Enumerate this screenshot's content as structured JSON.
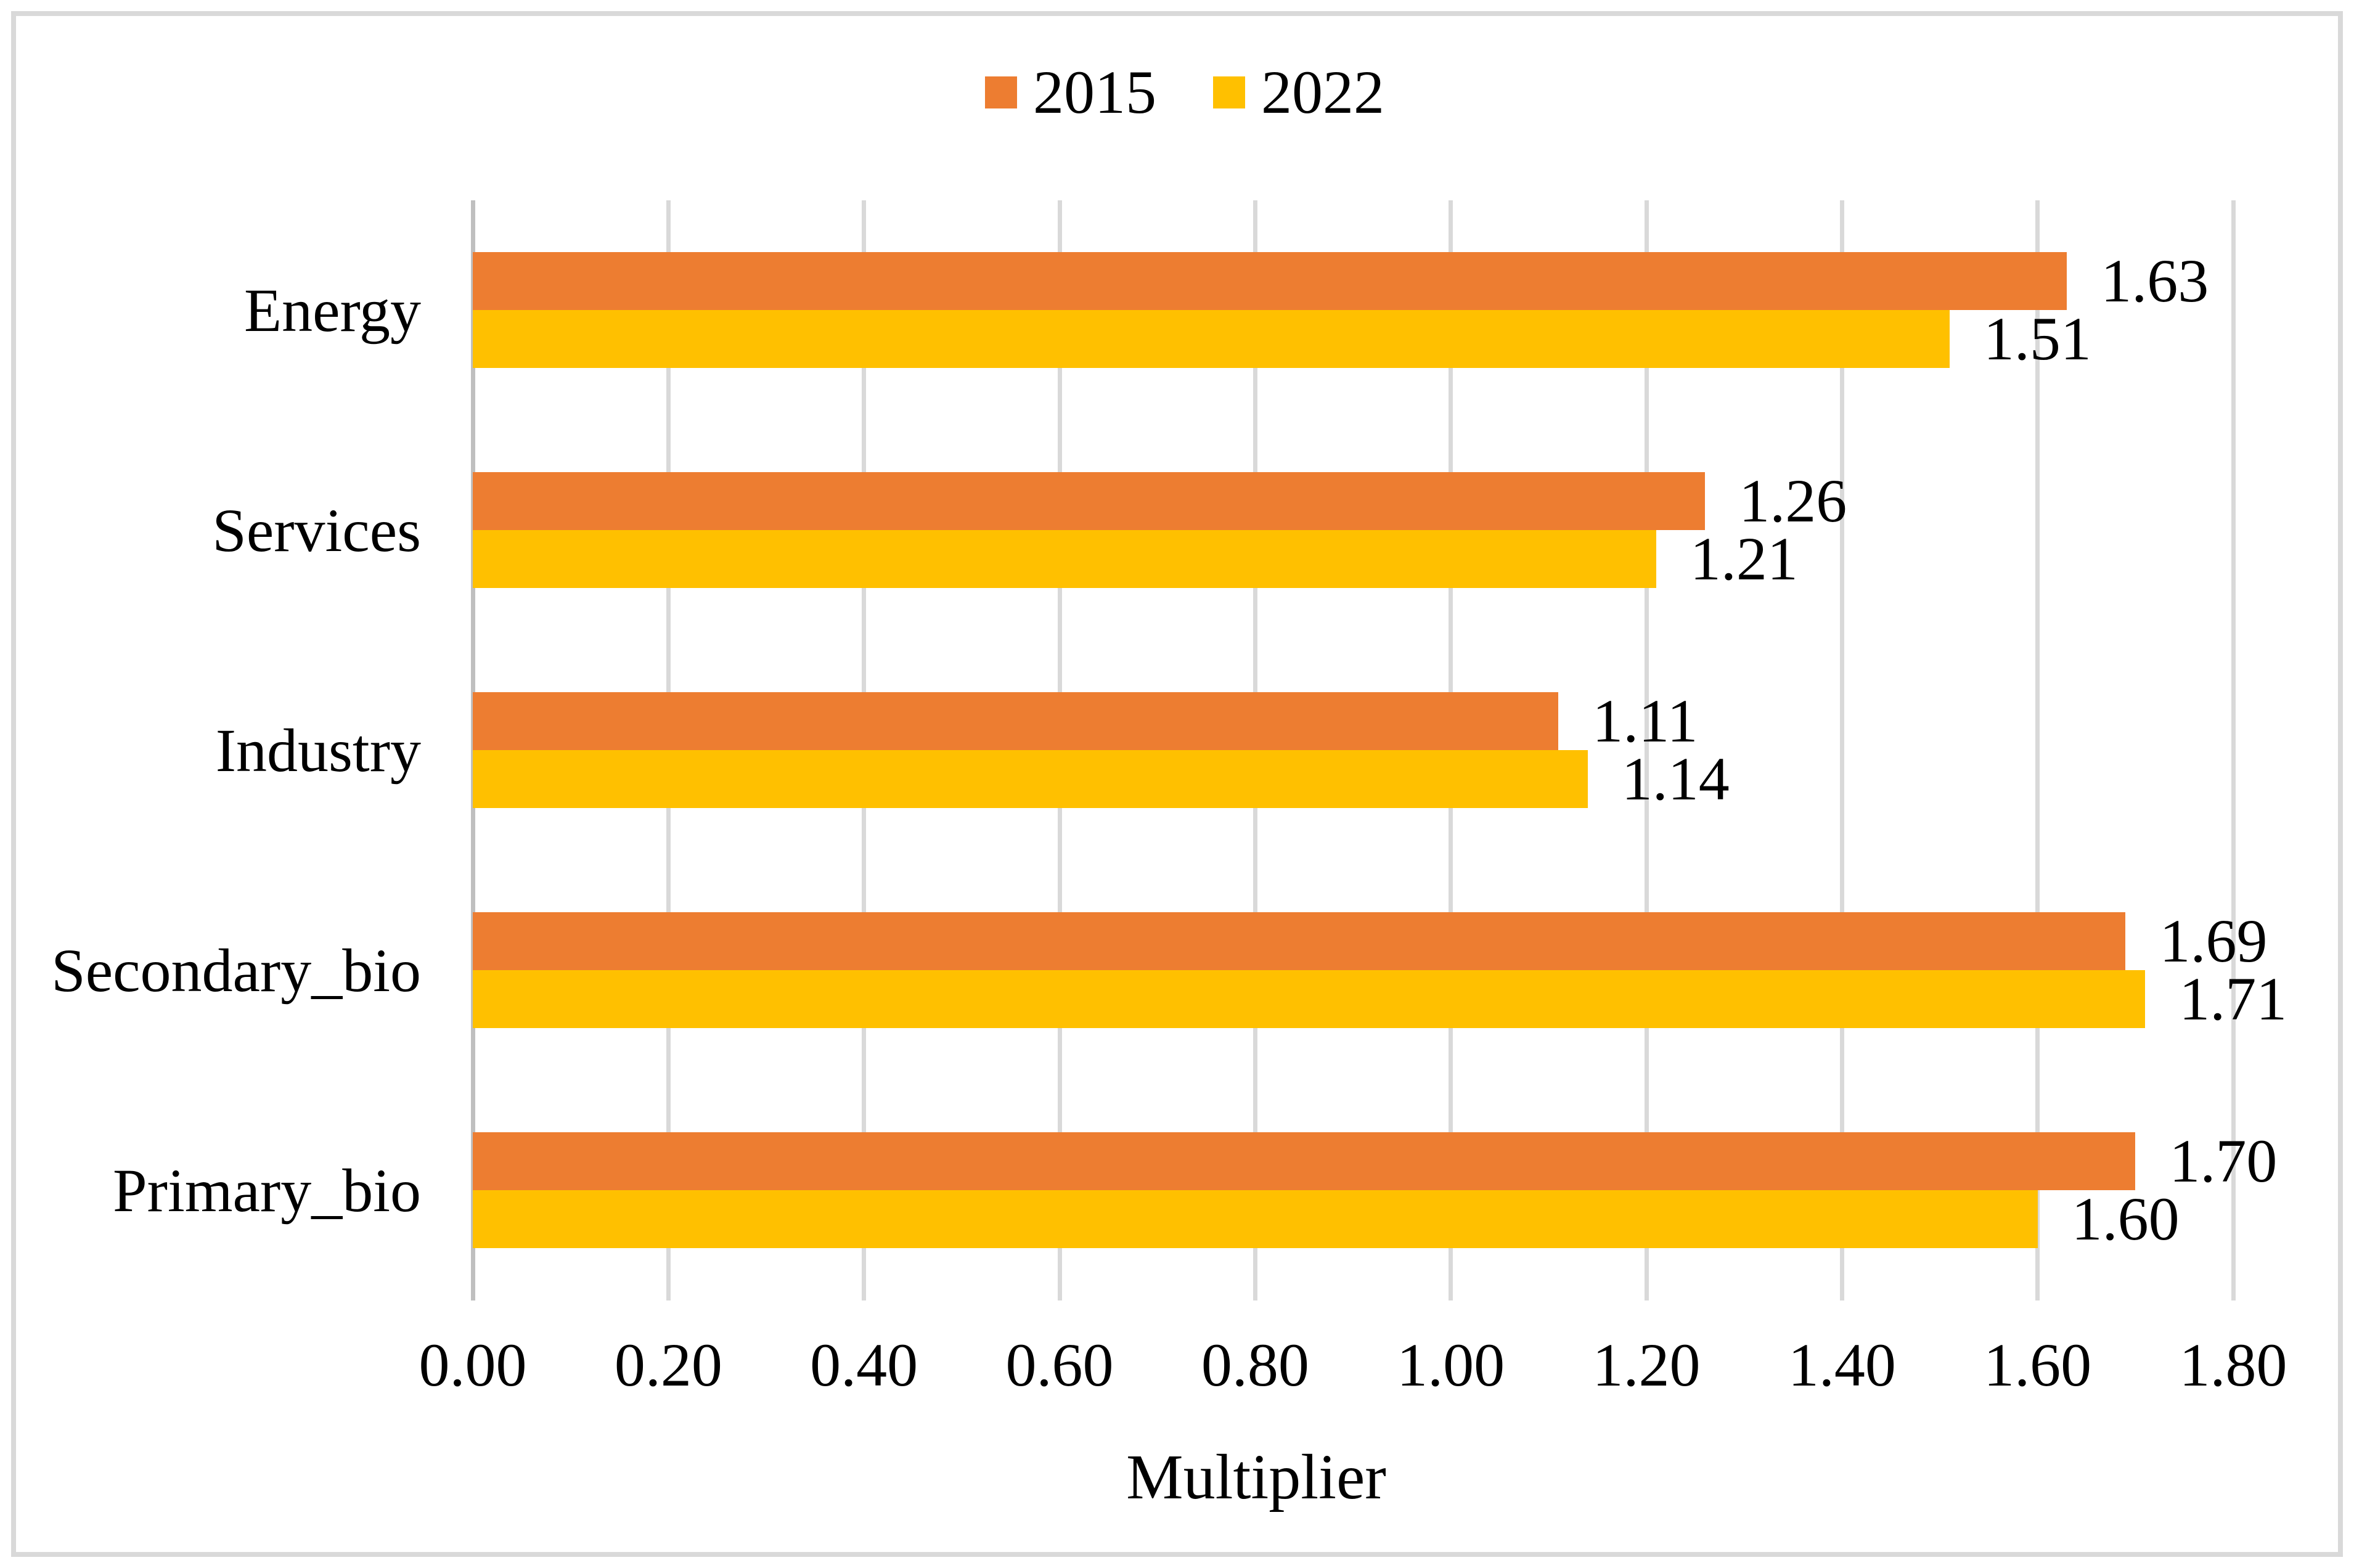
{
  "chart_data": {
    "type": "bar",
    "orientation": "horizontal",
    "title": "",
    "xlabel": "Multiplier",
    "ylabel": "",
    "xlim": [
      0.0,
      1.8
    ],
    "x_ticks": [
      "0.00",
      "0.20",
      "0.40",
      "0.60",
      "0.80",
      "1.00",
      "1.20",
      "1.40",
      "1.60",
      "1.80"
    ],
    "categories": [
      "Energy",
      "Services",
      "Industry",
      "Secondary_bio",
      "Primary_bio"
    ],
    "series": [
      {
        "name": "2015",
        "color": "#ED7D31",
        "values": [
          1.63,
          1.26,
          1.11,
          1.69,
          1.7
        ]
      },
      {
        "name": "2022",
        "color": "#FFC000",
        "values": [
          1.51,
          1.21,
          1.14,
          1.71,
          1.6
        ]
      }
    ],
    "value_labels": [
      [
        "1.63",
        "1.26",
        "1.11",
        "1.69",
        "1.70"
      ],
      [
        "1.51",
        "1.21",
        "1.14",
        "1.71",
        "1.60"
      ]
    ],
    "grid": "vertical-on",
    "legend_position": "top-center",
    "colors": {
      "gridline": "#D9D9D9",
      "zero_axis_line": "#BFBFBF",
      "chart_border": "#D9D9D9",
      "background": "#FFFFFF",
      "text": "#000000"
    }
  },
  "legend": {
    "items": [
      {
        "label": "2015",
        "color": "#ED7D31"
      },
      {
        "label": "2022",
        "color": "#FFC000"
      }
    ]
  }
}
